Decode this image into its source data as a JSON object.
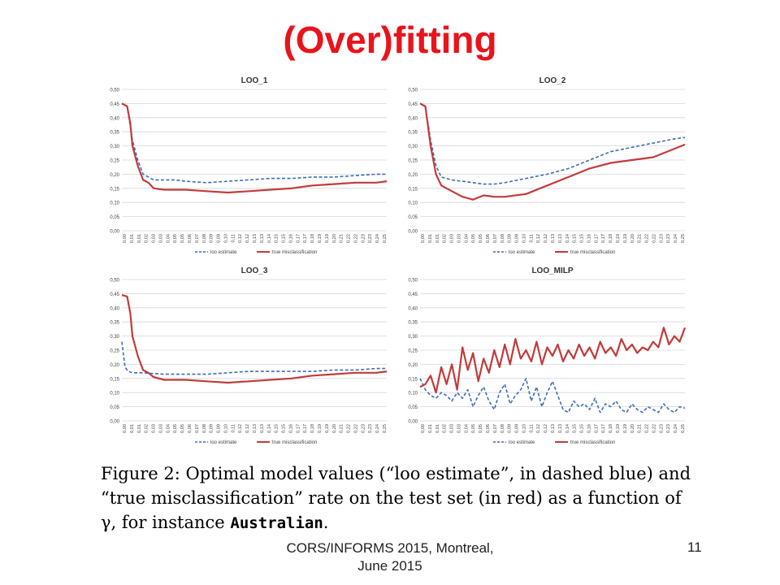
{
  "slide": {
    "title": "(Over)fitting",
    "caption": {
      "text": "Figure 2: Optimal model values (“loo estimate”, in dashed blue) and “true misclassification” rate on the test set (in red) as a function of γ, for instance ",
      "instance": "Australian",
      "suffix": "."
    },
    "footer": {
      "line1": "CORS/INFORMS 2015, Montreal,",
      "line2": "June 2015",
      "page": "11"
    },
    "colors": {
      "title": "#e8141b",
      "loo": "#3c6db8",
      "true": "#c23b3b"
    }
  },
  "x_tick_labels": [
    "0,00",
    "0,01",
    "0,01",
    "0,02",
    "0,03",
    "0,03",
    "0,04",
    "0,05",
    "0,05",
    "0,06",
    "0,07",
    "0,08",
    "0,09",
    "0,09",
    "0,10",
    "0,11",
    "0,12",
    "0,12",
    "0,13",
    "0,13",
    "0,14",
    "0,15",
    "0,15",
    "0,16",
    "0,17",
    "0,17",
    "0,18",
    "0,19",
    "0,19",
    "0,20",
    "0,21",
    "0,22",
    "0,22",
    "0,23",
    "0,23",
    "0,24",
    "0,25"
  ],
  "y_tick_labels_high": [
    "0,00",
    "0,05",
    "0,10",
    "0,15",
    "0,20",
    "0,25",
    "0,30",
    "0,35",
    "0,40",
    "0,45",
    "0,50"
  ],
  "y_tick_labels_low": [
    "0,00",
    "0,05",
    "0,10",
    "0,15",
    "0,20",
    "0,25",
    "0,30",
    "0,35",
    "0,40",
    "0,45",
    "0,50"
  ],
  "chart_data": [
    {
      "type": "line",
      "title": "LOO_1",
      "xlabel": "",
      "ylabel": "",
      "ylim": [
        0,
        0.5
      ],
      "xlim": [
        0,
        0.25
      ],
      "grid": true,
      "legend": "bottom",
      "series": [
        {
          "name": "loo estimate",
          "style": "dashed",
          "x": [
            0,
            0.005,
            0.01,
            0.015,
            0.02,
            0.03,
            0.04,
            0.05,
            0.06,
            0.08,
            0.1,
            0.12,
            0.14,
            0.16,
            0.18,
            0.2,
            0.22,
            0.24,
            0.25
          ],
          "y": [
            0.45,
            0.44,
            0.32,
            0.25,
            0.2,
            0.18,
            0.18,
            0.18,
            0.175,
            0.17,
            0.175,
            0.18,
            0.185,
            0.185,
            0.19,
            0.19,
            0.195,
            0.2,
            0.2
          ]
        },
        {
          "name": "true misclassification",
          "style": "solid",
          "x": [
            0,
            0.005,
            0.008,
            0.01,
            0.015,
            0.02,
            0.025,
            0.03,
            0.04,
            0.05,
            0.06,
            0.08,
            0.1,
            0.12,
            0.14,
            0.16,
            0.18,
            0.2,
            0.22,
            0.24,
            0.25
          ],
          "y": [
            0.45,
            0.44,
            0.38,
            0.3,
            0.23,
            0.18,
            0.17,
            0.15,
            0.145,
            0.145,
            0.145,
            0.14,
            0.135,
            0.14,
            0.145,
            0.15,
            0.16,
            0.165,
            0.17,
            0.17,
            0.175
          ]
        }
      ]
    },
    {
      "type": "line",
      "title": "LOO_2",
      "xlabel": "",
      "ylabel": "",
      "ylim": [
        0,
        0.5
      ],
      "xlim": [
        0,
        0.25
      ],
      "grid": true,
      "legend": "bottom",
      "series": [
        {
          "name": "loo estimate",
          "style": "dashed",
          "x": [
            0,
            0.005,
            0.01,
            0.015,
            0.02,
            0.03,
            0.04,
            0.05,
            0.06,
            0.07,
            0.08,
            0.1,
            0.12,
            0.14,
            0.16,
            0.18,
            0.2,
            0.22,
            0.24,
            0.25
          ],
          "y": [
            0.45,
            0.44,
            0.32,
            0.23,
            0.19,
            0.18,
            0.175,
            0.17,
            0.165,
            0.165,
            0.17,
            0.185,
            0.2,
            0.22,
            0.25,
            0.28,
            0.295,
            0.31,
            0.325,
            0.33
          ]
        },
        {
          "name": "true misclassification",
          "style": "solid",
          "x": [
            0,
            0.005,
            0.01,
            0.015,
            0.02,
            0.03,
            0.04,
            0.05,
            0.06,
            0.07,
            0.08,
            0.1,
            0.12,
            0.14,
            0.16,
            0.18,
            0.2,
            0.22,
            0.24,
            0.25
          ],
          "y": [
            0.45,
            0.44,
            0.3,
            0.2,
            0.16,
            0.14,
            0.12,
            0.11,
            0.125,
            0.12,
            0.12,
            0.13,
            0.16,
            0.19,
            0.22,
            0.24,
            0.25,
            0.26,
            0.29,
            0.305
          ]
        }
      ]
    },
    {
      "type": "line",
      "title": "LOO_3",
      "xlabel": "",
      "ylabel": "",
      "ylim": [
        0,
        0.5
      ],
      "xlim": [
        0,
        0.25
      ],
      "grid": true,
      "legend": "bottom",
      "series": [
        {
          "name": "loo estimate",
          "style": "dashed",
          "x": [
            0,
            0.003,
            0.006,
            0.01,
            0.02,
            0.04,
            0.06,
            0.08,
            0.1,
            0.12,
            0.14,
            0.16,
            0.18,
            0.2,
            0.22,
            0.24,
            0.25
          ],
          "y": [
            0.28,
            0.19,
            0.175,
            0.17,
            0.17,
            0.165,
            0.165,
            0.165,
            0.17,
            0.175,
            0.175,
            0.175,
            0.175,
            0.18,
            0.18,
            0.185,
            0.185
          ]
        },
        {
          "name": "true misclassification",
          "style": "solid",
          "x": [
            0,
            0.005,
            0.008,
            0.01,
            0.015,
            0.02,
            0.025,
            0.03,
            0.04,
            0.05,
            0.06,
            0.08,
            0.1,
            0.12,
            0.14,
            0.16,
            0.18,
            0.2,
            0.22,
            0.24,
            0.25
          ],
          "y": [
            0.445,
            0.44,
            0.38,
            0.3,
            0.23,
            0.18,
            0.17,
            0.155,
            0.145,
            0.145,
            0.145,
            0.14,
            0.135,
            0.14,
            0.145,
            0.15,
            0.16,
            0.165,
            0.17,
            0.17,
            0.175
          ]
        }
      ]
    },
    {
      "type": "line",
      "title": "LOO_MILP",
      "xlabel": "",
      "ylabel": "",
      "ylim": [
        0,
        0.5
      ],
      "xlim": [
        0,
        0.25
      ],
      "grid": true,
      "legend": "bottom",
      "series": [
        {
          "name": "loo estimate",
          "style": "dashed",
          "x": [
            0,
            0.005,
            0.01,
            0.015,
            0.02,
            0.025,
            0.03,
            0.035,
            0.04,
            0.045,
            0.05,
            0.055,
            0.06,
            0.065,
            0.07,
            0.075,
            0.08,
            0.085,
            0.09,
            0.095,
            0.1,
            0.105,
            0.11,
            0.115,
            0.12,
            0.125,
            0.13,
            0.135,
            0.14,
            0.145,
            0.15,
            0.155,
            0.16,
            0.165,
            0.17,
            0.175,
            0.18,
            0.185,
            0.19,
            0.195,
            0.2,
            0.205,
            0.21,
            0.215,
            0.22,
            0.225,
            0.23,
            0.235,
            0.24,
            0.245,
            0.25
          ],
          "y": [
            0.15,
            0.11,
            0.09,
            0.08,
            0.1,
            0.09,
            0.07,
            0.1,
            0.08,
            0.11,
            0.05,
            0.09,
            0.12,
            0.07,
            0.04,
            0.1,
            0.13,
            0.06,
            0.09,
            0.11,
            0.15,
            0.07,
            0.12,
            0.05,
            0.1,
            0.14,
            0.09,
            0.04,
            0.03,
            0.07,
            0.05,
            0.06,
            0.04,
            0.08,
            0.03,
            0.06,
            0.05,
            0.07,
            0.04,
            0.03,
            0.06,
            0.04,
            0.03,
            0.05,
            0.04,
            0.03,
            0.06,
            0.04,
            0.03,
            0.05,
            0.045
          ]
        },
        {
          "name": "true misclassification",
          "style": "solid",
          "x": [
            0,
            0.005,
            0.01,
            0.015,
            0.02,
            0.025,
            0.03,
            0.035,
            0.04,
            0.045,
            0.05,
            0.055,
            0.06,
            0.065,
            0.07,
            0.075,
            0.08,
            0.085,
            0.09,
            0.095,
            0.1,
            0.105,
            0.11,
            0.115,
            0.12,
            0.125,
            0.13,
            0.135,
            0.14,
            0.145,
            0.15,
            0.155,
            0.16,
            0.165,
            0.17,
            0.175,
            0.18,
            0.185,
            0.19,
            0.195,
            0.2,
            0.205,
            0.21,
            0.215,
            0.22,
            0.225,
            0.23,
            0.235,
            0.24,
            0.245,
            0.25
          ],
          "y": [
            0.12,
            0.13,
            0.16,
            0.1,
            0.19,
            0.13,
            0.2,
            0.11,
            0.26,
            0.18,
            0.24,
            0.14,
            0.22,
            0.17,
            0.25,
            0.19,
            0.27,
            0.2,
            0.29,
            0.22,
            0.25,
            0.21,
            0.28,
            0.2,
            0.26,
            0.23,
            0.27,
            0.21,
            0.25,
            0.22,
            0.27,
            0.23,
            0.26,
            0.22,
            0.28,
            0.24,
            0.26,
            0.23,
            0.29,
            0.25,
            0.27,
            0.24,
            0.26,
            0.25,
            0.28,
            0.26,
            0.33,
            0.27,
            0.3,
            0.28,
            0.33
          ]
        }
      ]
    }
  ]
}
